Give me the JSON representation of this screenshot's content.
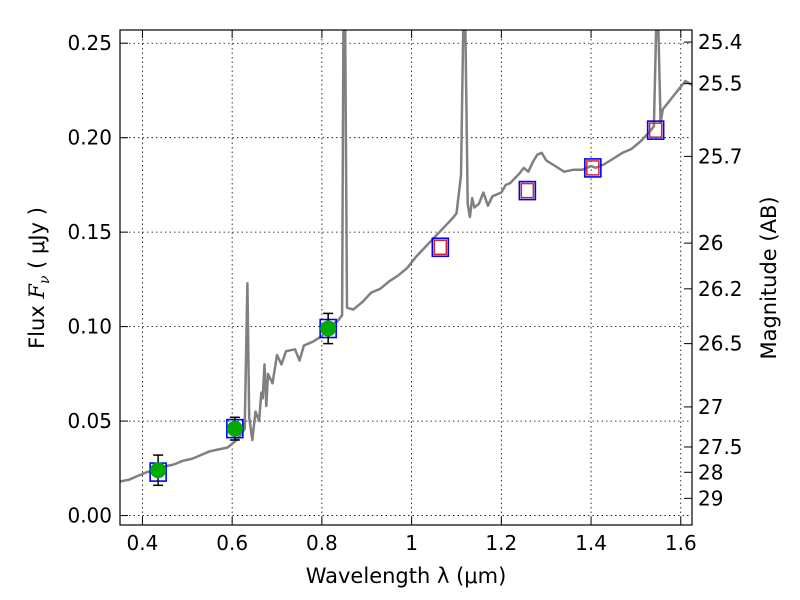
{
  "chart_data": {
    "type": "line",
    "xlabel": "Wavelength  λ (μm)",
    "ylabel_parts": {
      "prefix": "Flux  ",
      "symbol": "F",
      "subscript": "ν",
      "unit": "  ( μJy )"
    },
    "y2label": "Magnitude (AB)",
    "xlim": [
      0.35,
      1.625
    ],
    "ylim": [
      -0.005,
      0.257
    ],
    "grid": true,
    "x_ticks": [
      0.4,
      0.6,
      0.8,
      1.0,
      1.2,
      1.4,
      1.6
    ],
    "x_tick_labels": [
      "0.4",
      "0.6",
      "0.8",
      "1",
      "1.2",
      "1.4",
      "1.6"
    ],
    "y_ticks": [
      0.0,
      0.05,
      0.1,
      0.15,
      0.2,
      0.25
    ],
    "y_tick_labels": [
      "0.00",
      "0.05",
      "0.10",
      "0.15",
      "0.20",
      "0.25"
    ],
    "y2_ticks": [
      {
        "label": "25.4",
        "flux": 0.2506
      },
      {
        "label": "25.5",
        "flux": 0.2286
      },
      {
        "label": "25.7",
        "flux": 0.1901
      },
      {
        "label": "26",
        "flux": 0.1442
      },
      {
        "label": "26.2",
        "flux": 0.12
      },
      {
        "label": "26.5",
        "flux": 0.091
      },
      {
        "label": "27",
        "flux": 0.0575
      },
      {
        "label": "27.5",
        "flux": 0.0363
      },
      {
        "label": "28",
        "flux": 0.0229
      },
      {
        "label": "29",
        "flux": 0.0091
      }
    ],
    "series": [
      {
        "kind": "spectrum",
        "color": "#808080",
        "points": [
          [
            0.35,
            0.018
          ],
          [
            0.37,
            0.019
          ],
          [
            0.39,
            0.021
          ],
          [
            0.41,
            0.023
          ],
          [
            0.43,
            0.024
          ],
          [
            0.45,
            0.026
          ],
          [
            0.47,
            0.027
          ],
          [
            0.49,
            0.029
          ],
          [
            0.51,
            0.03
          ],
          [
            0.53,
            0.032
          ],
          [
            0.55,
            0.034
          ],
          [
            0.57,
            0.035
          ],
          [
            0.59,
            0.036
          ],
          [
            0.61,
            0.04
          ],
          [
            0.62,
            0.043
          ],
          [
            0.628,
            0.046
          ],
          [
            0.634,
            0.123
          ],
          [
            0.638,
            0.052
          ],
          [
            0.645,
            0.04
          ],
          [
            0.652,
            0.055
          ],
          [
            0.66,
            0.05
          ],
          [
            0.665,
            0.065
          ],
          [
            0.668,
            0.062
          ],
          [
            0.672,
            0.08
          ],
          [
            0.676,
            0.058
          ],
          [
            0.68,
            0.075
          ],
          [
            0.69,
            0.07
          ],
          [
            0.7,
            0.085
          ],
          [
            0.71,
            0.08
          ],
          [
            0.72,
            0.087
          ],
          [
            0.74,
            0.088
          ],
          [
            0.75,
            0.082
          ],
          [
            0.76,
            0.09
          ],
          [
            0.78,
            0.092
          ],
          [
            0.8,
            0.095
          ],
          [
            0.82,
            0.101
          ],
          [
            0.835,
            0.103
          ],
          [
            0.845,
            0.106
          ],
          [
            0.848,
            0.257
          ],
          [
            0.852,
            0.257
          ],
          [
            0.856,
            0.11
          ],
          [
            0.87,
            0.109
          ],
          [
            0.89,
            0.113
          ],
          [
            0.91,
            0.118
          ],
          [
            0.93,
            0.12
          ],
          [
            0.95,
            0.124
          ],
          [
            0.97,
            0.127
          ],
          [
            0.99,
            0.131
          ],
          [
            1.01,
            0.137
          ],
          [
            1.03,
            0.142
          ],
          [
            1.05,
            0.147
          ],
          [
            1.07,
            0.152
          ],
          [
            1.09,
            0.157
          ],
          [
            1.1,
            0.16
          ],
          [
            1.11,
            0.18
          ],
          [
            1.115,
            0.257
          ],
          [
            1.12,
            0.257
          ],
          [
            1.125,
            0.165
          ],
          [
            1.13,
            0.158
          ],
          [
            1.135,
            0.168
          ],
          [
            1.14,
            0.163
          ],
          [
            1.15,
            0.165
          ],
          [
            1.16,
            0.171
          ],
          [
            1.17,
            0.164
          ],
          [
            1.18,
            0.169
          ],
          [
            1.2,
            0.171
          ],
          [
            1.21,
            0.175
          ],
          [
            1.22,
            0.176
          ],
          [
            1.24,
            0.181
          ],
          [
            1.25,
            0.184
          ],
          [
            1.26,
            0.182
          ],
          [
            1.27,
            0.187
          ],
          [
            1.28,
            0.191
          ],
          [
            1.29,
            0.192
          ],
          [
            1.3,
            0.188
          ],
          [
            1.32,
            0.185
          ],
          [
            1.34,
            0.182
          ],
          [
            1.36,
            0.183
          ],
          [
            1.38,
            0.183
          ],
          [
            1.4,
            0.185
          ],
          [
            1.41,
            0.184
          ],
          [
            1.43,
            0.186
          ],
          [
            1.45,
            0.189
          ],
          [
            1.47,
            0.192
          ],
          [
            1.49,
            0.194
          ],
          [
            1.51,
            0.198
          ],
          [
            1.53,
            0.203
          ],
          [
            1.54,
            0.206
          ],
          [
            1.545,
            0.257
          ],
          [
            1.55,
            0.257
          ],
          [
            1.555,
            0.208
          ],
          [
            1.56,
            0.215
          ],
          [
            1.57,
            0.218
          ],
          [
            1.58,
            0.221
          ],
          [
            1.59,
            0.224
          ],
          [
            1.6,
            0.227
          ],
          [
            1.61,
            0.23
          ],
          [
            1.625,
            0.228
          ]
        ]
      }
    ],
    "model_boxes": [
      {
        "x": 0.435,
        "y": 0.023
      },
      {
        "x": 0.606,
        "y": 0.046
      },
      {
        "x": 0.814,
        "y": 0.099
      },
      {
        "x": 1.064,
        "y": 0.142
      },
      {
        "x": 1.258,
        "y": 0.172
      },
      {
        "x": 1.404,
        "y": 0.184
      },
      {
        "x": 1.544,
        "y": 0.204
      }
    ],
    "observed_points": [
      {
        "x": 0.435,
        "y": 0.024,
        "err": 0.008
      },
      {
        "x": 0.606,
        "y": 0.046,
        "err": 0.006
      },
      {
        "x": 0.814,
        "y": 0.099,
        "err": 0.008
      }
    ],
    "upper_limit_markers": [
      {
        "x": 1.064,
        "y": 0.142
      },
      {
        "x": 1.258,
        "y": 0.172
      },
      {
        "x": 1.404,
        "y": 0.184
      },
      {
        "x": 1.544,
        "y": 0.204
      }
    ],
    "colors": {
      "spectrum": "#808080",
      "box": "#0000ff",
      "point": "#00aa00",
      "marker": "#d62728",
      "grid": "#000000"
    }
  }
}
